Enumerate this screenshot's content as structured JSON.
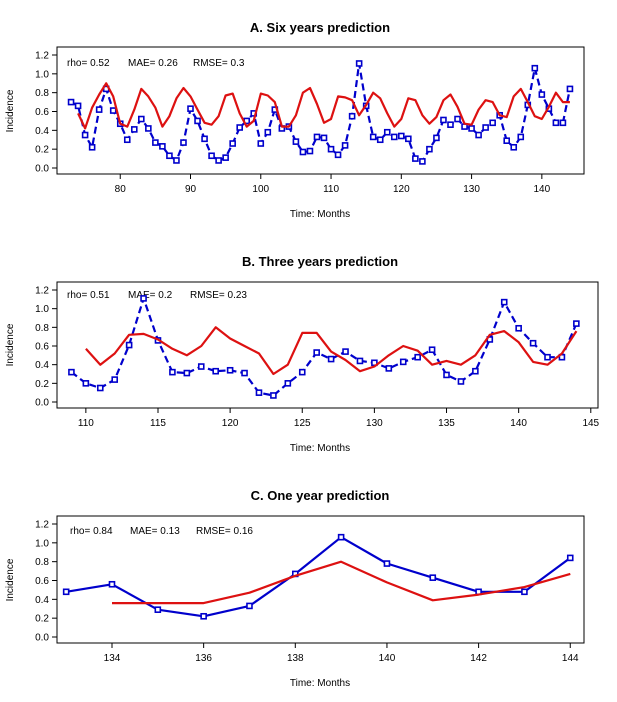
{
  "colors": {
    "observed": "#0000cc",
    "predicted": "#dd1111"
  },
  "chart_data": [
    {
      "type": "line",
      "title": "A. Six years prediction",
      "xlabel": "Time: Months",
      "ylabel": "Incidence",
      "xlim": [
        71,
        146
      ],
      "ylim": [
        0,
        1.2
      ],
      "xticks": [
        80,
        90,
        100,
        110,
        120,
        130,
        140
      ],
      "yticks": [
        0.0,
        0.2,
        0.4,
        0.6,
        0.8,
        1.0,
        1.2
      ],
      "stats": {
        "rho": "rho= 0.52",
        "mae": "MAE= 0.26",
        "rmse": "RMSE= 0.3"
      },
      "series": [
        {
          "role": "observed",
          "x": [
            73,
            74,
            75,
            76,
            77,
            78,
            79,
            80,
            81,
            82,
            83,
            84,
            85,
            86,
            87,
            88,
            89,
            90,
            91,
            92,
            93,
            94,
            95,
            96,
            97,
            98,
            99,
            100,
            101,
            102,
            103,
            104,
            105,
            106,
            107,
            108,
            109,
            110,
            111,
            112,
            113,
            114,
            115,
            116,
            117,
            118,
            119,
            120,
            121,
            122,
            123,
            124,
            125,
            126,
            127,
            128,
            129,
            130,
            131,
            132,
            133,
            134,
            135,
            136,
            137,
            138,
            139,
            140,
            141,
            142,
            143,
            144
          ],
          "y": [
            0.7,
            0.66,
            0.35,
            0.22,
            0.62,
            0.84,
            0.61,
            0.47,
            0.3,
            0.41,
            0.52,
            0.42,
            0.27,
            0.23,
            0.13,
            0.08,
            0.27,
            0.63,
            0.5,
            0.31,
            0.13,
            0.08,
            0.11,
            0.26,
            0.43,
            0.5,
            0.58,
            0.26,
            0.38,
            0.62,
            0.42,
            0.44,
            0.28,
            0.17,
            0.18,
            0.33,
            0.32,
            0.2,
            0.14,
            0.24,
            0.55,
            1.11,
            0.66,
            0.33,
            0.3,
            0.38,
            0.33,
            0.34,
            0.31,
            0.1,
            0.07,
            0.2,
            0.32,
            0.51,
            0.46,
            0.52,
            0.44,
            0.42,
            0.35,
            0.43,
            0.48,
            0.56,
            0.29,
            0.22,
            0.33,
            0.67,
            1.06,
            0.78,
            0.63,
            0.48,
            0.48,
            0.84
          ]
        },
        {
          "role": "predicted",
          "x": [
            74,
            75,
            76,
            77,
            78,
            79,
            80,
            81,
            82,
            83,
            84,
            85,
            86,
            87,
            88,
            89,
            90,
            91,
            92,
            93,
            94,
            95,
            96,
            97,
            98,
            99,
            100,
            101,
            102,
            103,
            104,
            105,
            106,
            107,
            108,
            109,
            110,
            111,
            112,
            113,
            114,
            115,
            116,
            117,
            118,
            119,
            120,
            121,
            122,
            123,
            124,
            125,
            126,
            127,
            128,
            129,
            130,
            131,
            132,
            133,
            134,
            135,
            136,
            137,
            138,
            139,
            140,
            141,
            142,
            143,
            144
          ],
          "y": [
            0.58,
            0.42,
            0.64,
            0.78,
            0.9,
            0.76,
            0.47,
            0.44,
            0.62,
            0.84,
            0.76,
            0.64,
            0.44,
            0.55,
            0.74,
            0.85,
            0.76,
            0.62,
            0.48,
            0.46,
            0.55,
            0.77,
            0.79,
            0.58,
            0.44,
            0.5,
            0.79,
            0.77,
            0.7,
            0.44,
            0.44,
            0.56,
            0.8,
            0.85,
            0.68,
            0.48,
            0.52,
            0.76,
            0.75,
            0.72,
            0.56,
            0.67,
            0.8,
            0.74,
            0.58,
            0.44,
            0.52,
            0.74,
            0.72,
            0.56,
            0.47,
            0.54,
            0.72,
            0.78,
            0.65,
            0.47,
            0.46,
            0.62,
            0.72,
            0.7,
            0.56,
            0.54,
            0.76,
            0.84,
            0.7,
            0.55,
            0.52,
            0.65,
            0.8,
            0.7,
            0.7
          ]
        }
      ]
    },
    {
      "type": "line",
      "title": "B. Three years prediction",
      "xlabel": "Time: Months",
      "ylabel": "Incidence",
      "xlim": [
        108,
        145.5
      ],
      "ylim": [
        0,
        1.2
      ],
      "xticks": [
        110,
        115,
        120,
        125,
        130,
        135,
        140,
        145
      ],
      "yticks": [
        0.0,
        0.2,
        0.4,
        0.6,
        0.8,
        1.0,
        1.2
      ],
      "stats": {
        "rho": "rho= 0.51",
        "mae": "MAE= 0.2",
        "rmse": "RMSE= 0.23"
      },
      "series": [
        {
          "role": "observed",
          "x": [
            109,
            110,
            111,
            112,
            113,
            114,
            115,
            116,
            117,
            118,
            119,
            120,
            121,
            122,
            123,
            124,
            125,
            126,
            127,
            128,
            129,
            130,
            131,
            132,
            133,
            134,
            135,
            136,
            137,
            138,
            139,
            140,
            141,
            142,
            143,
            144
          ],
          "y": [
            0.32,
            0.2,
            0.15,
            0.24,
            0.61,
            1.11,
            0.66,
            0.32,
            0.31,
            0.38,
            0.33,
            0.34,
            0.31,
            0.1,
            0.07,
            0.2,
            0.32,
            0.53,
            0.46,
            0.54,
            0.44,
            0.42,
            0.36,
            0.43,
            0.48,
            0.56,
            0.29,
            0.22,
            0.33,
            0.67,
            1.07,
            0.79,
            0.63,
            0.48,
            0.48,
            0.84
          ]
        },
        {
          "role": "predicted",
          "x": [
            110,
            111,
            112,
            113,
            114,
            115,
            116,
            117,
            118,
            119,
            120,
            121,
            122,
            123,
            124,
            125,
            126,
            127,
            128,
            129,
            130,
            131,
            132,
            133,
            134,
            135,
            136,
            137,
            138,
            139,
            140,
            141,
            142,
            143,
            144
          ],
          "y": [
            0.57,
            0.4,
            0.52,
            0.72,
            0.73,
            0.67,
            0.57,
            0.5,
            0.6,
            0.8,
            0.68,
            0.6,
            0.52,
            0.3,
            0.4,
            0.74,
            0.74,
            0.54,
            0.45,
            0.33,
            0.38,
            0.5,
            0.6,
            0.55,
            0.4,
            0.44,
            0.4,
            0.5,
            0.72,
            0.76,
            0.64,
            0.43,
            0.4,
            0.52,
            0.76
          ]
        }
      ]
    },
    {
      "type": "line",
      "title": "C. One year prediction",
      "xlabel": "Time: Months",
      "ylabel": "Incidence",
      "xlim": [
        132.8,
        144.3
      ],
      "ylim": [
        0,
        1.2
      ],
      "xticks": [
        134,
        136,
        138,
        140,
        142,
        144
      ],
      "yticks": [
        0.0,
        0.2,
        0.4,
        0.6,
        0.8,
        1.0,
        1.2
      ],
      "stats": {
        "rho": "rho= 0.84",
        "mae": "MAE= 0.13",
        "rmse": "RMSE= 0.16"
      },
      "series": [
        {
          "role": "observed",
          "x": [
            133,
            134,
            135,
            136,
            137,
            138,
            139,
            140,
            141,
            142,
            143,
            144
          ],
          "y": [
            0.48,
            0.56,
            0.29,
            0.22,
            0.33,
            0.67,
            1.06,
            0.78,
            0.63,
            0.48,
            0.48,
            0.84
          ]
        },
        {
          "role": "predicted",
          "x": [
            134,
            135,
            136,
            137,
            138,
            139,
            140,
            141,
            142,
            143,
            144
          ],
          "y": [
            0.36,
            0.36,
            0.36,
            0.47,
            0.65,
            0.8,
            0.58,
            0.39,
            0.45,
            0.53,
            0.67
          ]
        }
      ]
    }
  ]
}
